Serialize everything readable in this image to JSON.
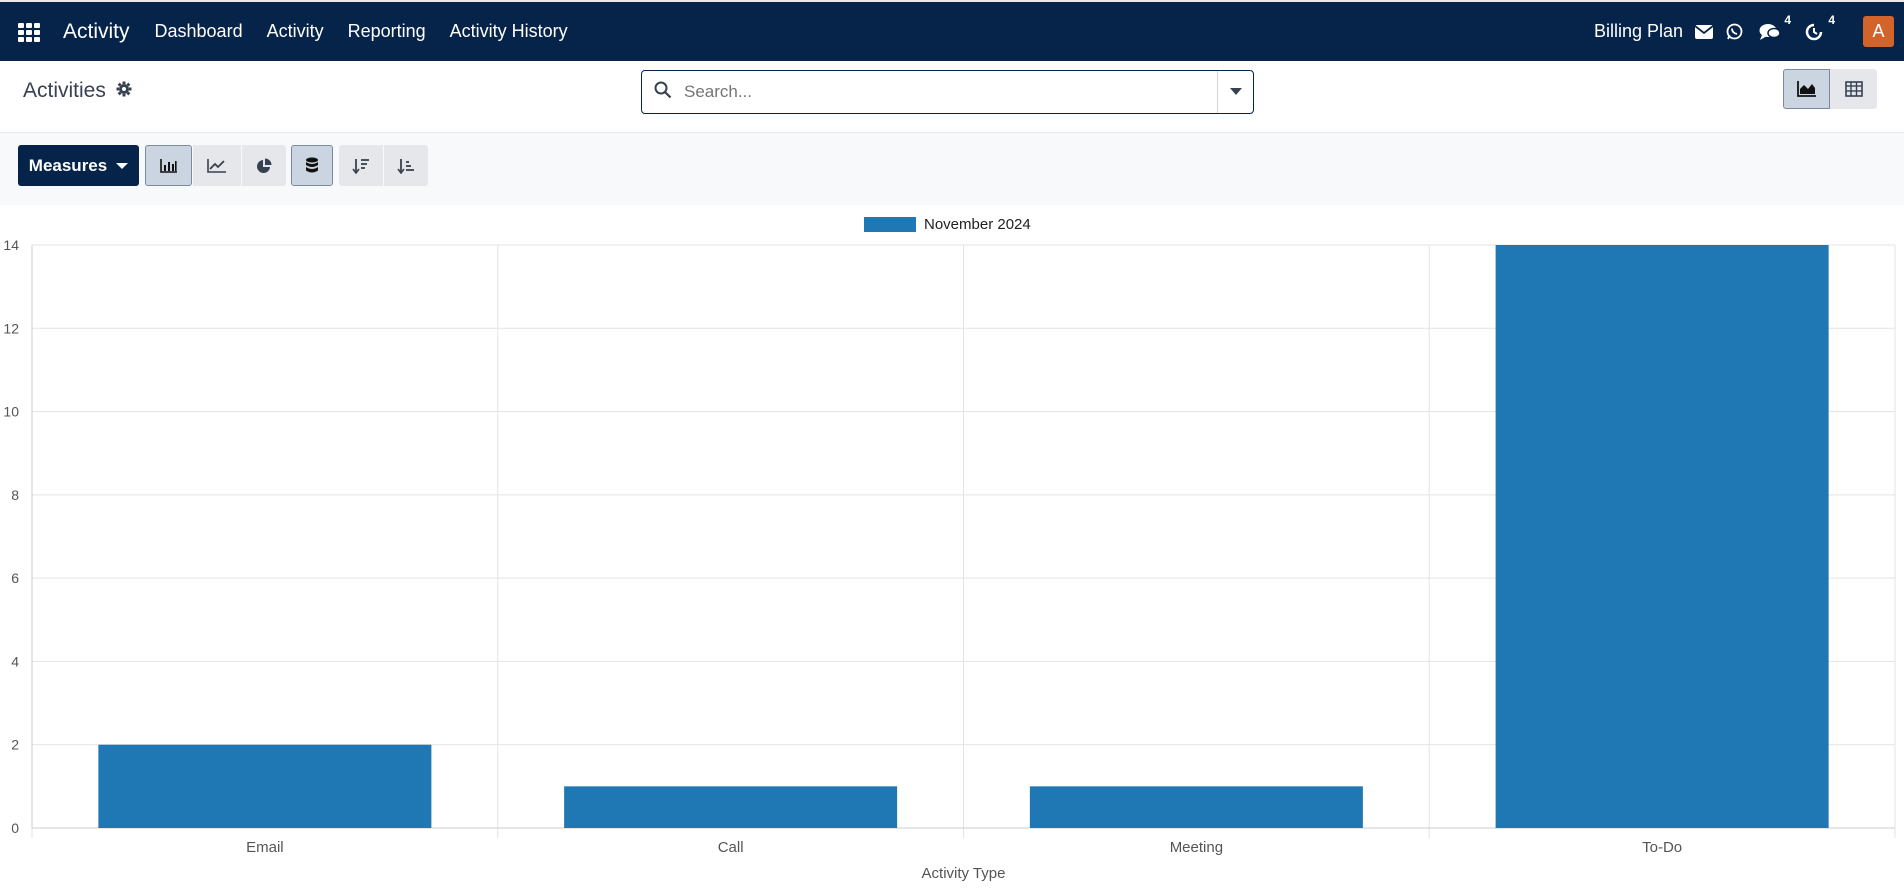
{
  "navbar": {
    "app_name": "Activity",
    "links": [
      "Dashboard",
      "Activity",
      "Reporting",
      "Activity History"
    ],
    "billing": "Billing Plan",
    "messages_count": "4",
    "activities_count": "4",
    "avatar_letter": "A"
  },
  "control_panel": {
    "title": "Activities",
    "search_placeholder": "Search...",
    "measures_label": "Measures"
  },
  "colors": {
    "navbar": "#06234a",
    "bar": "#1f77b4",
    "avatar": "#d2642b"
  },
  "chart_data": {
    "type": "bar",
    "categories": [
      "Email",
      "Call",
      "Meeting",
      "To-Do"
    ],
    "series": [
      {
        "name": "November 2024",
        "values": [
          2,
          1,
          1,
          14
        ]
      }
    ],
    "xlabel": "Activity Type",
    "ylabel": "",
    "ylim": [
      0,
      14
    ],
    "yticks": [
      0,
      2,
      4,
      6,
      8,
      10,
      12,
      14
    ],
    "grid": true,
    "legend_position": "top-center"
  }
}
